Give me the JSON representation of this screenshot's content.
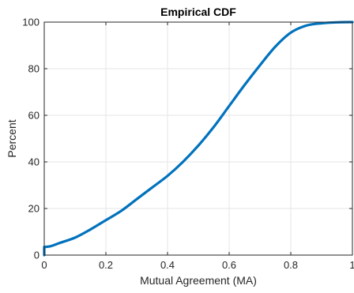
{
  "chart_data": {
    "type": "line",
    "title": "Empirical CDF",
    "xlabel": "Mutual Agreement (MA)",
    "ylabel": "Percent",
    "xlim": [
      0,
      1
    ],
    "ylim": [
      0,
      100
    ],
    "xticks": [
      "0",
      "0.2",
      "0.4",
      "0.6",
      "0.8",
      "1"
    ],
    "yticks": [
      "0",
      "20",
      "40",
      "60",
      "80",
      "100"
    ],
    "grid": true,
    "legend": "none",
    "line_color": "#0072BD",
    "series": [
      {
        "x": [
          0,
          0,
          0.02,
          0.05,
          0.1,
          0.15,
          0.2,
          0.25,
          0.3,
          0.35,
          0.4,
          0.45,
          0.5,
          0.55,
          0.6,
          0.65,
          0.7,
          0.75,
          0.8,
          0.85,
          0.9,
          0.95,
          1
        ],
        "y": [
          0,
          3.5,
          3.8,
          5.2,
          7.5,
          11,
          15,
          19,
          24,
          29,
          34,
          40,
          47,
          55,
          64,
          73,
          81.5,
          89.5,
          95.5,
          98.5,
          99.5,
          99.9,
          100
        ]
      }
    ]
  }
}
